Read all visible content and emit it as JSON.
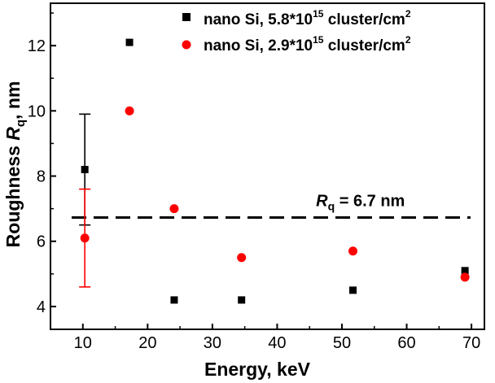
{
  "chart_data": {
    "type": "scatter",
    "xlabel": "Energy, keV",
    "ylabel": {
      "prefix": "Roughness ",
      "symbol": "R",
      "subscript": "q",
      "suffix": ", nm"
    },
    "xlim": [
      5,
      72
    ],
    "ylim": [
      3.3,
      13.3
    ],
    "xticks": [
      10,
      20,
      30,
      40,
      50,
      60,
      70
    ],
    "yticks": [
      4,
      6,
      8,
      10,
      12
    ],
    "grid": false,
    "legend_position": "top-right",
    "series": [
      {
        "name_parts": {
          "base": "nano Si, 5.8*10",
          "sup1": "15",
          "mid": " cluster/cm",
          "sup2": "2"
        },
        "marker": "square",
        "color": "#000000",
        "points": [
          {
            "x": 10.3,
            "y": 8.2,
            "err_low": 6.5,
            "err_high": 9.9
          },
          {
            "x": 17.2,
            "y": 12.1
          },
          {
            "x": 24.1,
            "y": 4.2
          },
          {
            "x": 34.5,
            "y": 4.2
          },
          {
            "x": 51.7,
            "y": 4.5
          },
          {
            "x": 69.0,
            "y": 5.1
          }
        ]
      },
      {
        "name_parts": {
          "base": "nano Si, 2.9*10",
          "sup1": "15",
          "mid": " cluster/cm",
          "sup2": "2"
        },
        "marker": "circle",
        "color": "#ff0000",
        "points": [
          {
            "x": 10.3,
            "y": 6.1,
            "err_low": 4.6,
            "err_high": 7.6
          },
          {
            "x": 17.2,
            "y": 10.0
          },
          {
            "x": 24.1,
            "y": 7.0
          },
          {
            "x": 34.5,
            "y": 5.5
          },
          {
            "x": 51.7,
            "y": 5.7
          },
          {
            "x": 69.0,
            "y": 4.9
          }
        ]
      }
    ],
    "reference_line": {
      "y": 6.73,
      "style": "dashed",
      "label": {
        "symbol": "R",
        "subscript": "q",
        "text": " = 6.7 nm"
      }
    }
  }
}
